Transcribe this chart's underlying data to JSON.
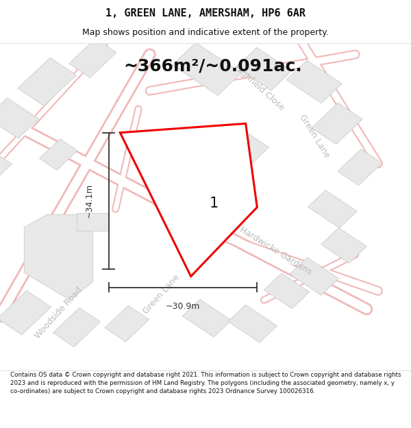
{
  "title": "1, GREEN LANE, AMERSHAM, HP6 6AR",
  "subtitle": "Map shows position and indicative extent of the property.",
  "area_text": "~366m²/~0.091ac.",
  "dim_vertical": "~34.1m",
  "dim_horizontal": "~30.9m",
  "label": "1",
  "footer": "Contains OS data © Crown copyright and database right 2021. This information is subject to Crown copyright and database rights 2023 and is reproduced with the permission of HM Land Registry. The polygons (including the associated geometry, namely x, y co-ordinates) are subject to Crown copyright and database rights 2023 Ordnance Survey 100026316.",
  "bg_color": "#ffffff",
  "map_bg": "#fafafa",
  "road_fill": "#ffffff",
  "road_casing": "#f0b8b8",
  "road_label_color": "#bbbbbb",
  "building_color": "#e8e8e8",
  "building_edge": "#cccccc",
  "plot_color": "#ee0000",
  "plot_fill": "#ffffff",
  "dim_color": "#333333",
  "title_font": 11,
  "subtitle_font": 9,
  "area_font": 18,
  "footer_font": 6.3
}
